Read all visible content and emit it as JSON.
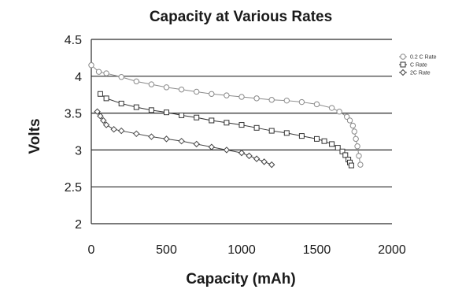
{
  "chart_data": {
    "type": "line",
    "title": "Capacity at Various Rates",
    "xlabel": "Capacity (mAh)",
    "ylabel": "Volts",
    "xlim": [
      0,
      2000
    ],
    "ylim": [
      2,
      4.5
    ],
    "x_ticks": [
      "0",
      "500",
      "1000",
      "1500",
      "2000"
    ],
    "y_ticks": [
      "2",
      "2.5",
      "3",
      "3.5",
      "4",
      "4.5"
    ],
    "grid": "horizontal",
    "legend_position": "top-right",
    "series": [
      {
        "name": "0.2 C Rate",
        "marker": "circle",
        "x": [
          0,
          50,
          100,
          200,
          300,
          400,
          500,
          600,
          700,
          800,
          900,
          1000,
          1100,
          1200,
          1300,
          1400,
          1500,
          1600,
          1650,
          1700,
          1720,
          1740,
          1750,
          1760,
          1770,
          1780,
          1790
        ],
        "y": [
          4.15,
          4.06,
          4.04,
          3.99,
          3.93,
          3.89,
          3.85,
          3.82,
          3.79,
          3.76,
          3.74,
          3.72,
          3.7,
          3.68,
          3.67,
          3.65,
          3.62,
          3.57,
          3.52,
          3.45,
          3.4,
          3.33,
          3.25,
          3.15,
          3.05,
          2.92,
          2.8
        ]
      },
      {
        "name": "C Rate",
        "marker": "square",
        "x": [
          60,
          100,
          200,
          300,
          400,
          500,
          600,
          700,
          800,
          900,
          1000,
          1100,
          1200,
          1300,
          1400,
          1500,
          1550,
          1600,
          1640,
          1670,
          1690,
          1710,
          1720,
          1730
        ],
        "y": [
          3.76,
          3.7,
          3.63,
          3.58,
          3.54,
          3.51,
          3.47,
          3.44,
          3.4,
          3.37,
          3.34,
          3.3,
          3.26,
          3.23,
          3.19,
          3.15,
          3.12,
          3.08,
          3.03,
          2.98,
          2.93,
          2.87,
          2.83,
          2.79
        ]
      },
      {
        "name": "2C Rate",
        "marker": "diamond",
        "x": [
          40,
          60,
          80,
          100,
          150,
          200,
          300,
          400,
          500,
          600,
          700,
          800,
          900,
          1000,
          1050,
          1100,
          1150,
          1200
        ],
        "y": [
          3.52,
          3.46,
          3.4,
          3.34,
          3.28,
          3.26,
          3.22,
          3.18,
          3.15,
          3.12,
          3.08,
          3.04,
          3.0,
          2.96,
          2.92,
          2.88,
          2.84,
          2.8
        ]
      }
    ]
  }
}
